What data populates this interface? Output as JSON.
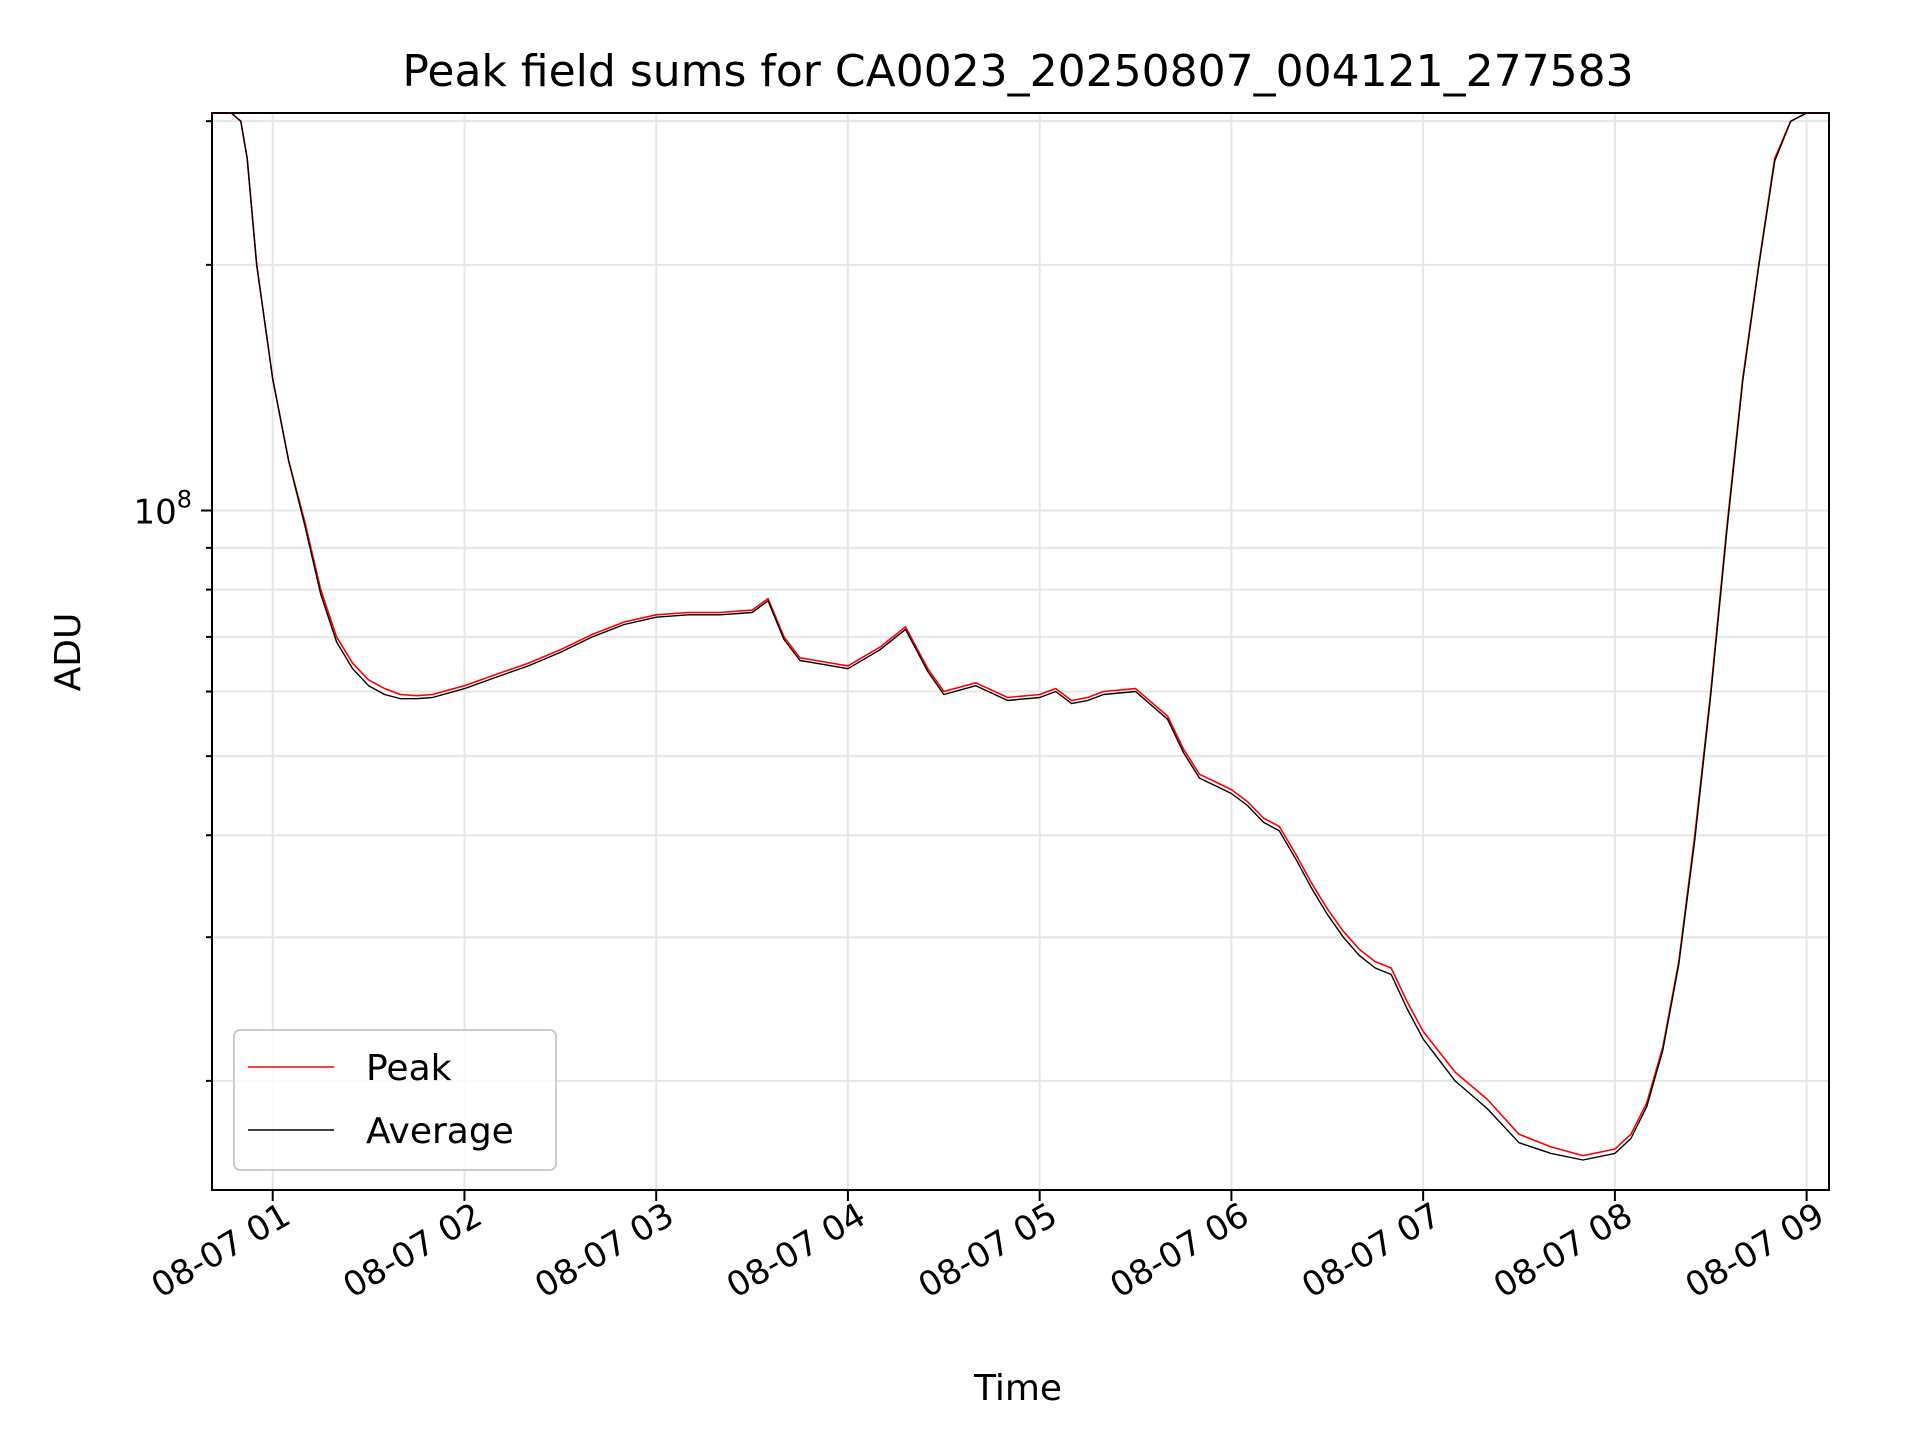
{
  "chart_data": {
    "type": "line",
    "title": "Peak field sums for CA0023_20250807_004121_277583",
    "xlabel": "Time",
    "ylabel": "ADU",
    "yscale": "log",
    "x_range": [
      "2025-08-07 00:41",
      "2025-08-07 09:07"
    ],
    "ylim": [
      14700000,
      307000000
    ],
    "x_ticks": [
      "08-07 01",
      "08-07 02",
      "08-07 03",
      "08-07 04",
      "08-07 05",
      "08-07 06",
      "08-07 07",
      "08-07 08",
      "08-07 09"
    ],
    "y_major_ticks": [
      {
        "value": 100000000,
        "base": "10",
        "exp": "8"
      }
    ],
    "y_minor_ticks": [
      20000000,
      30000000,
      40000000,
      50000000,
      60000000,
      70000000,
      80000000,
      90000000,
      200000000,
      300000000
    ],
    "grid": true,
    "legend": {
      "position": "bottom-left"
    },
    "series": [
      {
        "name": "Peak",
        "color": "#ff0000",
        "x": [
          "00:41",
          "00:47",
          "00:50",
          "00:52",
          "00:55",
          "01:00",
          "01:05",
          "01:10",
          "01:15",
          "01:20",
          "01:25",
          "01:30",
          "01:35",
          "01:40",
          "01:45",
          "01:50",
          "02:00",
          "02:10",
          "02:20",
          "02:30",
          "02:40",
          "02:50",
          "03:00",
          "03:10",
          "03:20",
          "03:30",
          "03:35",
          "03:40",
          "03:45",
          "03:50",
          "04:00",
          "04:10",
          "04:18",
          "04:25",
          "04:30",
          "04:40",
          "04:50",
          "05:00",
          "05:05",
          "05:10",
          "05:15",
          "05:20",
          "05:30",
          "05:40",
          "05:45",
          "05:50",
          "05:55",
          "06:00",
          "06:05",
          "06:10",
          "06:15",
          "06:20",
          "06:25",
          "06:30",
          "06:35",
          "06:40",
          "06:45",
          "06:50",
          "06:55",
          "07:00",
          "07:10",
          "07:20",
          "07:30",
          "07:40",
          "07:50",
          "08:00",
          "08:05",
          "08:10",
          "08:15",
          "08:20",
          "08:25",
          "08:30",
          "08:35",
          "08:40",
          "08:45",
          "08:50",
          "08:55",
          "09:00",
          "09:07"
        ],
        "y": [
          307000000,
          307000000,
          300000000,
          270000000,
          200000000,
          145000000,
          115000000,
          97000000,
          80000000,
          70000000,
          65000000,
          62000000,
          60500000,
          59500000,
          59300000,
          59500000,
          61000000,
          63000000,
          65000000,
          67500000,
          70500000,
          73000000,
          74500000,
          75000000,
          75000000,
          75500000,
          78000000,
          70000000,
          66000000,
          65500000,
          64500000,
          68000000,
          72000000,
          64000000,
          60000000,
          61500000,
          59000000,
          59500000,
          60500000,
          58500000,
          59000000,
          60000000,
          60500000,
          56000000,
          51000000,
          47500000,
          46500000,
          45500000,
          44000000,
          42000000,
          41000000,
          38000000,
          35000000,
          32500000,
          30500000,
          29000000,
          28000000,
          27500000,
          25000000,
          23000000,
          20500000,
          19000000,
          17200000,
          16600000,
          16200000,
          16500000,
          17200000,
          18800000,
          22000000,
          28000000,
          40000000,
          60000000,
          95000000,
          145000000,
          200000000,
          270000000,
          300000000,
          307000000,
          307000000
        ]
      },
      {
        "name": "Average",
        "color": "#000000",
        "x": [
          "00:41",
          "00:47",
          "00:50",
          "00:52",
          "00:55",
          "01:00",
          "01:05",
          "01:10",
          "01:15",
          "01:20",
          "01:25",
          "01:30",
          "01:35",
          "01:40",
          "01:45",
          "01:50",
          "02:00",
          "02:10",
          "02:20",
          "02:30",
          "02:40",
          "02:50",
          "03:00",
          "03:10",
          "03:20",
          "03:30",
          "03:35",
          "03:40",
          "03:45",
          "03:50",
          "04:00",
          "04:10",
          "04:18",
          "04:25",
          "04:30",
          "04:40",
          "04:50",
          "05:00",
          "05:05",
          "05:10",
          "05:15",
          "05:20",
          "05:30",
          "05:40",
          "05:45",
          "05:50",
          "05:55",
          "06:00",
          "06:05",
          "06:10",
          "06:15",
          "06:20",
          "06:25",
          "06:30",
          "06:35",
          "06:40",
          "06:45",
          "06:50",
          "06:55",
          "07:00",
          "07:10",
          "07:20",
          "07:30",
          "07:40",
          "07:50",
          "08:00",
          "08:05",
          "08:10",
          "08:15",
          "08:20",
          "08:25",
          "08:30",
          "08:35",
          "08:40",
          "08:45",
          "08:50",
          "08:55",
          "09:00",
          "09:07"
        ],
        "y": [
          307000000,
          307000000,
          300000000,
          270000000,
          200000000,
          145000000,
          115000000,
          96000000,
          79000000,
          69000000,
          64000000,
          61000000,
          59500000,
          58800000,
          58800000,
          59000000,
          60500000,
          62500000,
          64500000,
          67000000,
          70000000,
          72500000,
          74000000,
          74500000,
          74500000,
          75000000,
          77500000,
          69500000,
          65500000,
          65000000,
          64000000,
          67500000,
          71500000,
          63500000,
          59500000,
          61000000,
          58500000,
          59000000,
          60000000,
          58000000,
          58500000,
          59500000,
          60000000,
          55500000,
          50500000,
          47000000,
          46000000,
          45000000,
          43500000,
          41500000,
          40500000,
          37500000,
          34500000,
          32000000,
          30000000,
          28500000,
          27500000,
          27000000,
          24500000,
          22500000,
          20000000,
          18500000,
          16800000,
          16300000,
          16000000,
          16300000,
          17000000,
          18600000,
          21800000,
          27800000,
          39500000,
          59500000,
          94000000,
          144000000,
          199000000,
          268000000,
          300000000,
          307000000,
          307000000
        ]
      }
    ]
  }
}
